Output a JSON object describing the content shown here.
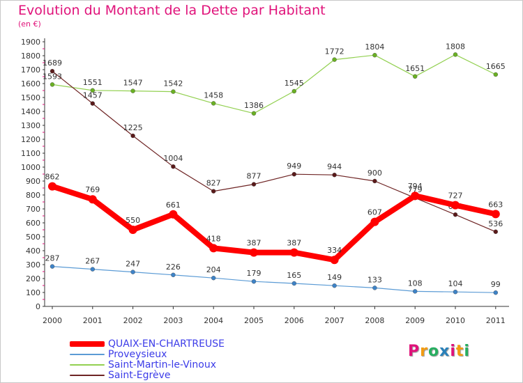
{
  "title": "Evolution du Montant de la Dette par Habitant",
  "subtitle": "(en €)",
  "logo": {
    "text": "Proxiti",
    "colors": [
      "#e0127a",
      "#f39c12",
      "#27ae60",
      "#2980b9",
      "#e0127a",
      "#f39c12",
      "#27ae60"
    ]
  },
  "chart_data": {
    "type": "line",
    "title": "Evolution du Montant de la Dette par Habitant",
    "subtitle": "(en €)",
    "xlabel": "",
    "ylabel": "",
    "x": [
      "2000",
      "2001",
      "2002",
      "2003",
      "2004",
      "2005",
      "2006",
      "2007",
      "2008",
      "2009",
      "2010",
      "2011"
    ],
    "yticks": [
      0,
      100,
      200,
      300,
      400,
      500,
      600,
      700,
      800,
      900,
      1000,
      1100,
      1200,
      1300,
      1400,
      1500,
      1600,
      1700,
      1800,
      1900
    ],
    "ylim": [
      0,
      1900
    ],
    "grid": false,
    "legend_position": "bottom-left",
    "series": [
      {
        "name": "Saint-Martin-le-Vinoux",
        "color": "#92d050",
        "marker": "#6ab023",
        "values": [
          1593,
          1551,
          1547,
          1542,
          1458,
          1386,
          1545,
          1772,
          1804,
          1651,
          1808,
          1665
        ]
      },
      {
        "name": "Saint-Egrève",
        "color": "#6e2424",
        "marker": "#5a1a1a",
        "values": [
          1689,
          1457,
          1225,
          1004,
          827,
          877,
          949,
          944,
          900,
          779,
          659,
          536
        ]
      },
      {
        "name": "Proveysieux",
        "color": "#5b9bd5",
        "marker": "#3e83c7",
        "values": [
          287,
          267,
          247,
          226,
          204,
          179,
          165,
          149,
          133,
          108,
          104,
          99
        ]
      },
      {
        "name": "QUAIX-EN-CHARTREUSE",
        "color": "#ff0000",
        "marker": "#ff0000",
        "values": [
          862,
          769,
          550,
          661,
          418,
          387,
          387,
          334,
          607,
          794,
          727,
          663
        ]
      }
    ],
    "legend": [
      "QUAIX-EN-CHARTREUSE",
      "Proveysieux",
      "Saint-Martin-le-Vinoux",
      "Saint-Egrève"
    ]
  }
}
